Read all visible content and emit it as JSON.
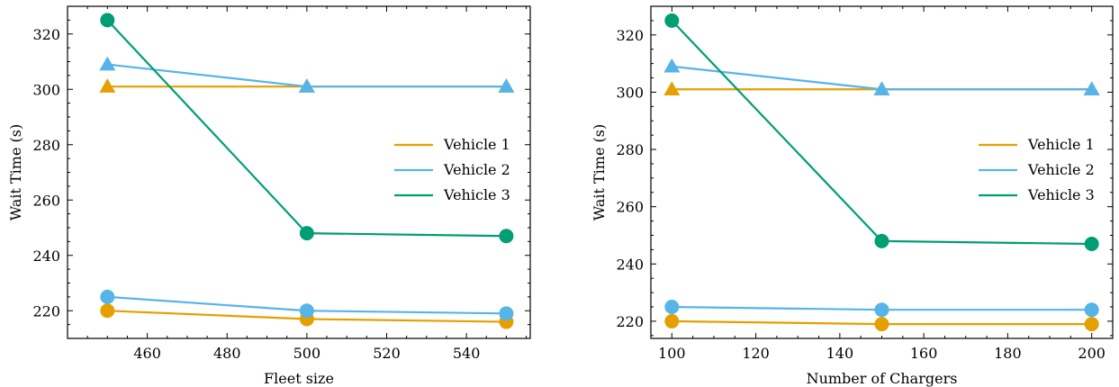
{
  "colors": {
    "vehicle1": "#E69F00",
    "vehicle2": "#56B4E9",
    "vehicle3": "#009E73"
  },
  "chart_data": [
    {
      "type": "line",
      "xlabel": "Fleet size",
      "ylabel": "Wait Time (s)",
      "xlim": [
        440,
        556
      ],
      "ylim": [
        210,
        330
      ],
      "xticks": [
        460,
        480,
        500,
        520,
        540
      ],
      "yticks": [
        220,
        240,
        260,
        280,
        300,
        320
      ],
      "x": [
        450,
        500,
        550
      ],
      "legend": {
        "position": "center-right",
        "entries": [
          "Vehicle 1",
          "Vehicle 2",
          "Vehicle 3"
        ]
      },
      "series": [
        {
          "name": "Vehicle 1",
          "group": "triangle",
          "marker": "triangle",
          "color": "#E69F00",
          "values": [
            301,
            301,
            301
          ]
        },
        {
          "name": "Vehicle 2",
          "group": "triangle",
          "marker": "triangle",
          "color": "#56B4E9",
          "values": [
            309,
            301,
            301
          ]
        },
        {
          "name": "Vehicle 3",
          "group": "circle",
          "marker": "circle",
          "color": "#009E73",
          "values": [
            325,
            248,
            247
          ]
        },
        {
          "name": "Vehicle 1",
          "group": "circle",
          "marker": "circle",
          "color": "#E69F00",
          "values": [
            220,
            217,
            216
          ]
        },
        {
          "name": "Vehicle 2",
          "group": "circle",
          "marker": "circle",
          "color": "#56B4E9",
          "values": [
            225,
            220,
            219
          ]
        }
      ]
    },
    {
      "type": "line",
      "xlabel": "Number of Chargers",
      "ylabel": "Wait Time (s)",
      "xlim": [
        95,
        205
      ],
      "ylim": [
        214,
        330
      ],
      "xticks": [
        100,
        120,
        140,
        160,
        180,
        200
      ],
      "yticks": [
        220,
        240,
        260,
        280,
        300,
        320
      ],
      "x": [
        100,
        150,
        200
      ],
      "legend": {
        "position": "center-right",
        "entries": [
          "Vehicle 1",
          "Vehicle 2",
          "Vehicle 3"
        ]
      },
      "series": [
        {
          "name": "Vehicle 1",
          "group": "triangle",
          "marker": "triangle",
          "color": "#E69F00",
          "values": [
            301,
            301,
            301
          ]
        },
        {
          "name": "Vehicle 2",
          "group": "triangle",
          "marker": "triangle",
          "color": "#56B4E9",
          "values": [
            309,
            301,
            301
          ]
        },
        {
          "name": "Vehicle 3",
          "group": "circle",
          "marker": "circle",
          "color": "#009E73",
          "values": [
            325,
            248,
            247
          ]
        },
        {
          "name": "Vehicle 1",
          "group": "circle",
          "marker": "circle",
          "color": "#E69F00",
          "values": [
            220,
            219,
            219
          ]
        },
        {
          "name": "Vehicle 2",
          "group": "circle",
          "marker": "circle",
          "color": "#56B4E9",
          "values": [
            225,
            224,
            224
          ]
        }
      ]
    }
  ]
}
